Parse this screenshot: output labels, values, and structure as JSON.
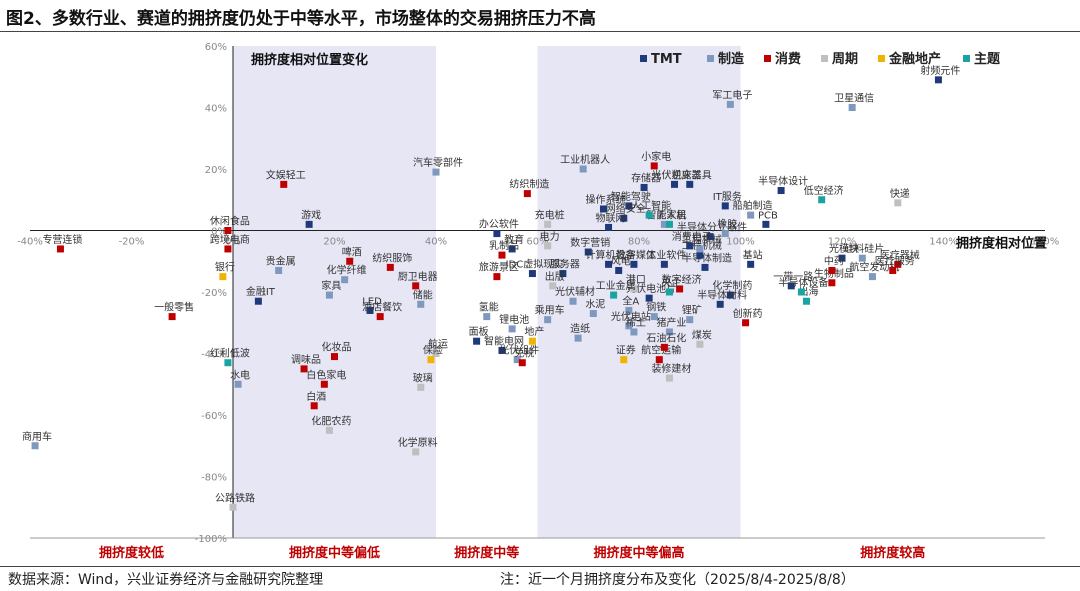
{
  "title": "图2、多数行业、赛道的拥挤度仍处于中等水平，市场整体的交易拥挤压力不高",
  "source": "数据来源：Wind，兴业证券经济与金融研究院整理",
  "note": "注：近一个月拥挤度分布及变化（2025/8/4-2025/8/8）",
  "chart_data": {
    "type": "scatter",
    "title": "",
    "xlabel": "拥挤度相对位置",
    "ylabel": "拥挤度相对位置变化",
    "xlim": [
      -0.4,
      1.6
    ],
    "ylim": [
      -1.0,
      0.6
    ],
    "x_ticks": [
      "-40%",
      "-20%",
      "0%",
      "20%",
      "40%",
      "60%",
      "80%",
      "100%",
      "120%",
      "140%",
      "160%"
    ],
    "y_ticks": [
      "60%",
      "40%",
      "20%",
      "0%",
      "-20%",
      "-40%",
      "-60%",
      "-80%",
      "-100%"
    ],
    "zones": [
      {
        "label": "拥挤度较低",
        "from": -0.4,
        "to": 0.0,
        "shaded": false
      },
      {
        "label": "拥挤度中等偏低",
        "from": 0.0,
        "to": 0.4,
        "shaded": true
      },
      {
        "label": "拥挤度中等",
        "from": 0.4,
        "to": 0.6,
        "shaded": false
      },
      {
        "label": "拥挤度中等偏高",
        "from": 0.6,
        "to": 1.0,
        "shaded": true
      },
      {
        "label": "拥挤度较高",
        "from": 1.0,
        "to": 1.6,
        "shaded": false
      }
    ],
    "legend_position": "top-right",
    "series": [
      {
        "name": "TMT",
        "color": "#1f3a7a",
        "points": [
          {
            "label": "射频元件",
            "x": 1.39,
            "y": 0.49
          },
          {
            "label": "游戏",
            "x": 0.15,
            "y": 0.02
          },
          {
            "label": "金融IT",
            "x": 0.05,
            "y": -0.23
          },
          {
            "label": "LED",
            "x": 0.27,
            "y": -0.26
          },
          {
            "label": "办公软件",
            "x": 0.52,
            "y": -0.01
          },
          {
            "label": "教育",
            "x": 0.55,
            "y": -0.06
          },
          {
            "label": "IDC虚拟现实",
            "x": 0.59,
            "y": -0.14
          },
          {
            "label": "面板",
            "x": 0.48,
            "y": -0.36
          },
          {
            "label": "智能电网",
            "x": 0.53,
            "y": -0.39
          },
          {
            "label": "服务器",
            "x": 0.65,
            "y": -0.14
          },
          {
            "label": "操作系统",
            "x": 0.73,
            "y": 0.07
          },
          {
            "label": "智能驾驶",
            "x": 0.78,
            "y": 0.08
          },
          {
            "label": "网络安全",
            "x": 0.77,
            "y": 0.04
          },
          {
            "label": "物联网",
            "x": 0.74,
            "y": 0.01
          },
          {
            "label": "数字营销",
            "x": 0.7,
            "y": -0.07
          },
          {
            "label": "计算机设备",
            "x": 0.74,
            "y": -0.11
          },
          {
            "label": "数字媒体",
            "x": 0.79,
            "y": -0.11
          },
          {
            "label": "风电",
            "x": 0.76,
            "y": -0.13
          },
          {
            "label": "工业软件",
            "x": 0.85,
            "y": -0.11
          },
          {
            "label": "半导体制造",
            "x": 0.93,
            "y": -0.12
          },
          {
            "label": "工程机械",
            "x": 0.92,
            "y": -0.08
          },
          {
            "label": "半导体分立器件",
            "x": 0.94,
            "y": -0.02
          },
          {
            "label": "IT服务",
            "x": 0.97,
            "y": 0.08
          },
          {
            "label": "半导体设计",
            "x": 1.08,
            "y": 0.13
          },
          {
            "label": "机床工具",
            "x": 0.9,
            "y": 0.15
          },
          {
            "label": "存储器",
            "x": 0.81,
            "y": 0.14
          },
          {
            "label": "光伏逆变器",
            "x": 0.87,
            "y": 0.15
          },
          {
            "label": "PCB",
            "x": 1.05,
            "y": 0.02
          },
          {
            "label": "光模块",
            "x": 1.2,
            "y": -0.09
          },
          {
            "label": "基站",
            "x": 1.02,
            "y": -0.11
          },
          {
            "label": "消费电子",
            "x": 0.9,
            "y": -0.05
          },
          {
            "label": "化学制药",
            "x": 0.98,
            "y": -0.21
          },
          {
            "label": "半导体材料",
            "x": 0.96,
            "y": -0.24
          },
          {
            "label": "光伏电池片",
            "x": 0.82,
            "y": -0.22
          },
          {
            "label": "一带一路",
            "x": 1.1,
            "y": -0.18
          }
        ]
      },
      {
        "name": "制造",
        "color": "#7f98be",
        "points": [
          {
            "label": "军工电子",
            "x": 0.98,
            "y": 0.41
          },
          {
            "label": "卫星通信",
            "x": 1.22,
            "y": 0.4
          },
          {
            "label": "汽车零部件",
            "x": 0.4,
            "y": 0.19
          },
          {
            "label": "工业机器人",
            "x": 0.69,
            "y": 0.2
          },
          {
            "label": "贵金属",
            "x": 0.09,
            "y": -0.13
          },
          {
            "label": "化学纤维",
            "x": 0.22,
            "y": -0.16
          },
          {
            "label": "家具",
            "x": 0.19,
            "y": -0.21
          },
          {
            "label": "储能",
            "x": 0.37,
            "y": -0.24
          },
          {
            "label": "氢能",
            "x": 0.5,
            "y": -0.28
          },
          {
            "label": "乘用车",
            "x": 0.62,
            "y": -0.29
          },
          {
            "label": "锂电池",
            "x": 0.55,
            "y": -0.32
          },
          {
            "label": "光伏辅材",
            "x": 0.67,
            "y": -0.23
          },
          {
            "label": "水泥",
            "x": 0.71,
            "y": -0.27
          },
          {
            "label": "造纸",
            "x": 0.68,
            "y": -0.35
          },
          {
            "label": "光伏组件",
            "x": 0.56,
            "y": -0.42
          },
          {
            "label": "全A",
            "x": 0.78,
            "y": -0.26
          },
          {
            "label": "光伏电站",
            "x": 0.78,
            "y": -0.31
          },
          {
            "label": "钢铁",
            "x": 0.83,
            "y": -0.28
          },
          {
            "label": "锂矿",
            "x": 0.9,
            "y": -0.29
          },
          {
            "label": "猪产业",
            "x": 0.86,
            "y": -0.33
          },
          {
            "label": "稀土",
            "x": 0.79,
            "y": -0.33
          },
          {
            "label": "工程机械",
            "x": 0.92,
            "y": -0.06
          },
          {
            "label": "船舶制造",
            "x": 1.02,
            "y": 0.05
          },
          {
            "label": "橡胶",
            "x": 0.97,
            "y": -0.01
          },
          {
            "label": "航空发动机",
            "x": 1.26,
            "y": -0.15
          },
          {
            "label": "硅料硅片",
            "x": 1.24,
            "y": -0.09
          },
          {
            "label": "水电",
            "x": 0.01,
            "y": -0.5
          },
          {
            "label": "商用车",
            "x": -0.39,
            "y": -0.7
          },
          {
            "label": "智能家居",
            "x": 0.85,
            "y": 0.02
          }
        ]
      },
      {
        "name": "消费",
        "color": "#c00000",
        "points": [
          {
            "label": "文娱轻工",
            "x": 0.1,
            "y": 0.15
          },
          {
            "label": "专营连锁",
            "x": -0.34,
            "y": -0.06
          },
          {
            "label": "跨境电商",
            "x": -0.01,
            "y": -0.06
          },
          {
            "label": "休闲食品",
            "x": -0.01,
            "y": 0.0
          },
          {
            "label": "一般零售",
            "x": -0.12,
            "y": -0.28
          },
          {
            "label": "啤酒",
            "x": 0.23,
            "y": -0.1
          },
          {
            "label": "纺织服饰",
            "x": 0.31,
            "y": -0.12
          },
          {
            "label": "厨卫电器",
            "x": 0.36,
            "y": -0.18
          },
          {
            "label": "酒店餐饮",
            "x": 0.29,
            "y": -0.28
          },
          {
            "label": "化妆品",
            "x": 0.2,
            "y": -0.41
          },
          {
            "label": "调味品",
            "x": 0.14,
            "y": -0.45
          },
          {
            "label": "白色家电",
            "x": 0.18,
            "y": -0.5
          },
          {
            "label": "白酒",
            "x": 0.16,
            "y": -0.57
          },
          {
            "label": "纺织制造",
            "x": 0.58,
            "y": 0.12
          },
          {
            "label": "乳制品",
            "x": 0.53,
            "y": -0.08
          },
          {
            "label": "旅游景区",
            "x": 0.52,
            "y": -0.15
          },
          {
            "label": "免税",
            "x": 0.57,
            "y": -0.43
          },
          {
            "label": "小家电",
            "x": 0.83,
            "y": 0.21
          },
          {
            "label": "航空运输",
            "x": 0.84,
            "y": -0.42
          },
          {
            "label": "石油石化",
            "x": 0.85,
            "y": -0.38
          },
          {
            "label": "创新药",
            "x": 1.01,
            "y": -0.3
          },
          {
            "label": "医疗器械",
            "x": 1.31,
            "y": -0.11
          },
          {
            "label": "医疗服务",
            "x": 1.3,
            "y": -0.13
          },
          {
            "label": "生物制品",
            "x": 1.18,
            "y": -0.17
          },
          {
            "label": "中药",
            "x": 1.18,
            "y": -0.13
          },
          {
            "label": "数字经济",
            "x": 0.88,
            "y": -0.19
          }
        ]
      },
      {
        "name": "周期",
        "color": "#bfbfbf",
        "points": [
          {
            "label": "快递",
            "x": 1.31,
            "y": 0.09
          },
          {
            "label": "航运",
            "x": 0.4,
            "y": -0.4
          },
          {
            "label": "玻璃",
            "x": 0.37,
            "y": -0.51
          },
          {
            "label": "化学原料",
            "x": 0.36,
            "y": -0.72
          },
          {
            "label": "化肥农药",
            "x": 0.19,
            "y": -0.65
          },
          {
            "label": "公路铁路",
            "x": 0.0,
            "y": -0.9
          },
          {
            "label": "装修建材",
            "x": 0.86,
            "y": -0.48
          },
          {
            "label": "煤炭",
            "x": 0.92,
            "y": -0.37
          },
          {
            "label": "出版",
            "x": 0.63,
            "y": -0.18
          },
          {
            "label": "充电桩",
            "x": 0.62,
            "y": 0.02
          },
          {
            "label": "电力",
            "x": 0.62,
            "y": -0.05
          },
          {
            "label": "港口",
            "x": 0.79,
            "y": -0.19
          }
        ]
      },
      {
        "name": "金融地产",
        "color": "#f0b400",
        "points": [
          {
            "label": "银行",
            "x": -0.02,
            "y": -0.15
          },
          {
            "label": "保险",
            "x": 0.39,
            "y": -0.42
          },
          {
            "label": "地产",
            "x": 0.59,
            "y": -0.36
          },
          {
            "label": "证券",
            "x": 0.77,
            "y": -0.42
          }
        ]
      },
      {
        "name": "主题",
        "color": "#1aa3a3",
        "points": [
          {
            "label": "红利低波",
            "x": -0.01,
            "y": -0.43
          },
          {
            "label": "低空经济",
            "x": 1.16,
            "y": 0.1
          },
          {
            "label": "人工智能",
            "x": 0.82,
            "y": 0.05
          },
          {
            "label": "无人机",
            "x": 0.86,
            "y": 0.02
          },
          {
            "label": "工业金属",
            "x": 0.75,
            "y": -0.21
          },
          {
            "label": "出海",
            "x": 1.13,
            "y": -0.23
          },
          {
            "label": "半导体设备",
            "x": 1.12,
            "y": -0.2
          },
          {
            "label": "央企",
            "x": 0.86,
            "y": -0.2
          }
        ]
      }
    ]
  }
}
